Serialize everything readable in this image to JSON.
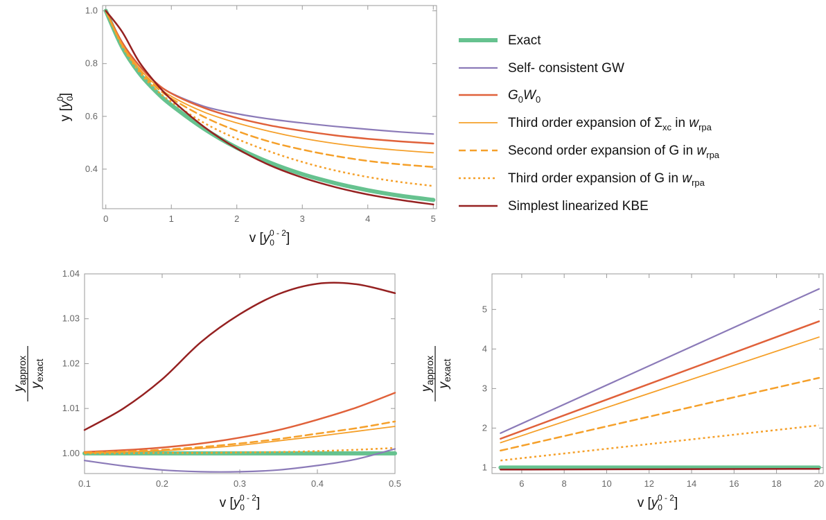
{
  "chart_data": [
    {
      "type": "line",
      "id": "top",
      "xlabel": "v",
      "xunit": "[y",
      "ylabel": "y",
      "yunit": "[y",
      "xlim": [
        -0.05,
        5.05
      ],
      "ylim": [
        0.25,
        1.02
      ],
      "xticks": [
        0,
        1,
        2,
        3,
        4,
        5
      ],
      "yticks": [
        0.4,
        0.6,
        0.8,
        1.0
      ],
      "ytick_labels": [
        "0.4",
        "0.6",
        "0.8",
        "1.0"
      ],
      "x": [
        0,
        0.25,
        0.5,
        0.75,
        1,
        1.5,
        2,
        2.5,
        3,
        3.5,
        4,
        4.5,
        5
      ],
      "series": [
        {
          "key": "exact",
          "values": [
            1.0,
            0.862,
            0.767,
            0.698,
            0.643,
            0.553,
            0.481,
            0.425,
            0.381,
            0.347,
            0.32,
            0.299,
            0.283
          ]
        },
        {
          "key": "scgw",
          "values": [
            1.0,
            0.88,
            0.795,
            0.731,
            0.688,
            0.638,
            0.61,
            0.59,
            0.575,
            0.562,
            0.551,
            0.541,
            0.533
          ]
        },
        {
          "key": "g0w0",
          "values": [
            1.0,
            0.88,
            0.795,
            0.731,
            0.687,
            0.632,
            0.594,
            0.566,
            0.545,
            0.528,
            0.515,
            0.505,
            0.497
          ]
        },
        {
          "key": "third_sigma",
          "values": [
            1.0,
            0.873,
            0.785,
            0.722,
            0.676,
            0.616,
            0.575,
            0.543,
            0.517,
            0.497,
            0.482,
            0.471,
            0.462
          ]
        },
        {
          "key": "second_g",
          "values": [
            1.0,
            0.87,
            0.78,
            0.715,
            0.668,
            0.598,
            0.545,
            0.504,
            0.474,
            0.45,
            0.431,
            0.418,
            0.408
          ]
        },
        {
          "key": "third_g",
          "values": [
            1.0,
            0.866,
            0.772,
            0.705,
            0.655,
            0.575,
            0.515,
            0.467,
            0.427,
            0.395,
            0.37,
            0.351,
            0.336
          ]
        },
        {
          "key": "kbe",
          "values": [
            1.0,
            0.92,
            0.81,
            0.73,
            0.664,
            0.56,
            0.478,
            0.415,
            0.368,
            0.332,
            0.304,
            0.283,
            0.266
          ]
        }
      ]
    },
    {
      "type": "line",
      "id": "bottom-left",
      "xlabel": "v",
      "xunit": "[y",
      "ylabel_num": "y",
      "ylabel_num_sub": "approx",
      "ylabel_den": "y",
      "ylabel_den_sub": "exact",
      "xlim": [
        0.1,
        0.5
      ],
      "ylim": [
        0.9955,
        1.04
      ],
      "xticks": [
        0.1,
        0.2,
        0.3,
        0.4,
        0.5
      ],
      "yticks": [
        1.0,
        1.01,
        1.02,
        1.03,
        1.04
      ],
      "ytick_labels": [
        "1.00",
        "1.01",
        "1.02",
        "1.03",
        "1.04"
      ],
      "x": [
        0.1,
        0.15,
        0.2,
        0.25,
        0.3,
        0.35,
        0.4,
        0.45,
        0.5
      ],
      "series": [
        {
          "key": "exact",
          "values": [
            1.0,
            1.0,
            1.0,
            1.0,
            1.0,
            1.0,
            1.0,
            1.0,
            1.0
          ]
        },
        {
          "key": "scgw",
          "values": [
            0.9984,
            0.9972,
            0.9963,
            0.9959,
            0.9959,
            0.9963,
            0.9973,
            0.9987,
            1.001
          ]
        },
        {
          "key": "g0w0",
          "values": [
            1.0003,
            1.0007,
            1.0013,
            1.0022,
            1.0035,
            1.0052,
            1.0075,
            1.0102,
            1.0135
          ]
        },
        {
          "key": "third_sigma",
          "values": [
            1.0001,
            1.0003,
            1.0006,
            1.0011,
            1.0018,
            1.0028,
            1.0038,
            1.0049,
            1.006
          ]
        },
        {
          "key": "second_g",
          "values": [
            1.0002,
            1.0004,
            1.0008,
            1.0014,
            1.0022,
            1.0032,
            1.0044,
            1.0056,
            1.0071
          ]
        },
        {
          "key": "third_g",
          "values": [
            1.0,
            1.0,
            1.0001,
            1.0001,
            1.0002,
            1.0003,
            1.0005,
            1.0008,
            1.0012
          ]
        },
        {
          "key": "kbe",
          "values": [
            1.0052,
            1.01,
            1.0165,
            1.0248,
            1.031,
            1.0355,
            1.0378,
            1.0377,
            1.0357
          ]
        }
      ]
    },
    {
      "type": "line",
      "id": "bottom-right",
      "xlabel": "v",
      "xunit": "[y",
      "ylabel_num": "y",
      "ylabel_num_sub": "approx",
      "ylabel_den": "y",
      "ylabel_den_sub": "exact",
      "xlim": [
        4.6,
        20.2
      ],
      "ylim": [
        0.85,
        5.9
      ],
      "xticks": [
        6,
        8,
        10,
        12,
        14,
        16,
        18,
        20
      ],
      "yticks": [
        1,
        2,
        3,
        4,
        5
      ],
      "ytick_labels": [
        "1",
        "2",
        "3",
        "4",
        "5"
      ],
      "x": [
        5,
        20
      ],
      "series": [
        {
          "key": "exact",
          "values": [
            1.0,
            1.0
          ]
        },
        {
          "key": "scgw",
          "values": [
            1.87,
            5.52
          ]
        },
        {
          "key": "g0w0",
          "values": [
            1.73,
            4.7
          ]
        },
        {
          "key": "third_sigma",
          "values": [
            1.63,
            4.3
          ]
        },
        {
          "key": "second_g",
          "values": [
            1.43,
            3.27
          ]
        },
        {
          "key": "third_g",
          "values": [
            1.18,
            2.07
          ]
        },
        {
          "key": "kbe",
          "values": [
            0.95,
            0.97
          ]
        }
      ]
    }
  ],
  "legend": [
    {
      "key": "exact",
      "label": "Exact",
      "color": "#66c28f",
      "dash": "solid",
      "width": 6
    },
    {
      "key": "scgw",
      "label": "Self- consistent GW",
      "color": "#8b7ab8",
      "dash": "solid",
      "width": 2.2
    },
    {
      "key": "g0w0",
      "label_main1": "G",
      "label_sub1": "0",
      "label_main2": "W",
      "label_sub2": "0",
      "color": "#e0613a",
      "dash": "solid",
      "width": 2.5
    },
    {
      "key": "third_sigma",
      "label_pre": "Third order expansion of ",
      "label_sym": "Σ",
      "label_sym_sub": "xc",
      "label_mid": " in ",
      "label_w": "w",
      "label_w_sub": "rpa",
      "color": "#f5a02a",
      "dash": "solid",
      "width": 1.8
    },
    {
      "key": "second_g",
      "label_pre": "Second order expansion of G in ",
      "label_w": "w",
      "label_w_sub": "rpa",
      "color": "#f5a02a",
      "dash": "dashed",
      "width": 2.5
    },
    {
      "key": "third_g",
      "label_pre": "Third order expansion of G in ",
      "label_w": "w",
      "label_w_sub": "rpa",
      "color": "#f5a02a",
      "dash": "dotted",
      "width": 2.5
    },
    {
      "key": "kbe",
      "label": "Simplest linearized KBE",
      "color": "#952121",
      "dash": "solid",
      "width": 2.5
    }
  ],
  "unit_sub": "0",
  "unit_sup_top_y": "0",
  "unit_sup_v": "0 - 2",
  "unit_close": "]"
}
